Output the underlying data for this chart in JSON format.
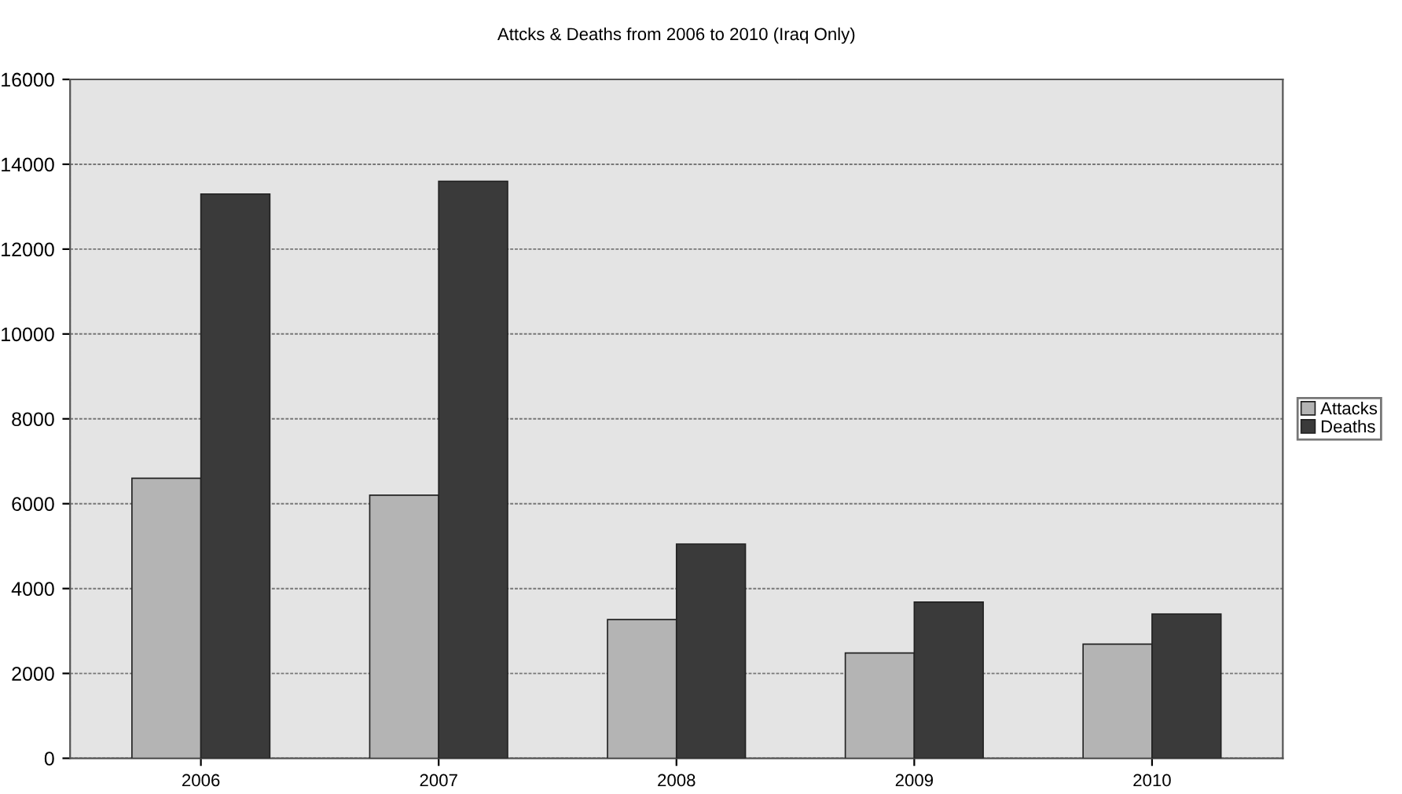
{
  "chart_data": {
    "type": "bar",
    "title": "Attcks & Deaths from 2006 to 2010 (Iraq Only)",
    "categories": [
      "2006",
      "2007",
      "2008",
      "2009",
      "2010"
    ],
    "series": [
      {
        "name": "Attacks",
        "color": "#b4b4b4",
        "values": [
          6600,
          6200,
          3270,
          2480,
          2690
        ]
      },
      {
        "name": "Deaths",
        "color": "#3a3a3a",
        "values": [
          13300,
          13600,
          5050,
          3680,
          3400
        ]
      }
    ],
    "ylim": [
      0,
      16000
    ],
    "yticks": [
      0,
      2000,
      4000,
      6000,
      8000,
      10000,
      12000,
      14000,
      16000
    ],
    "grid": "y",
    "legend": "right"
  }
}
